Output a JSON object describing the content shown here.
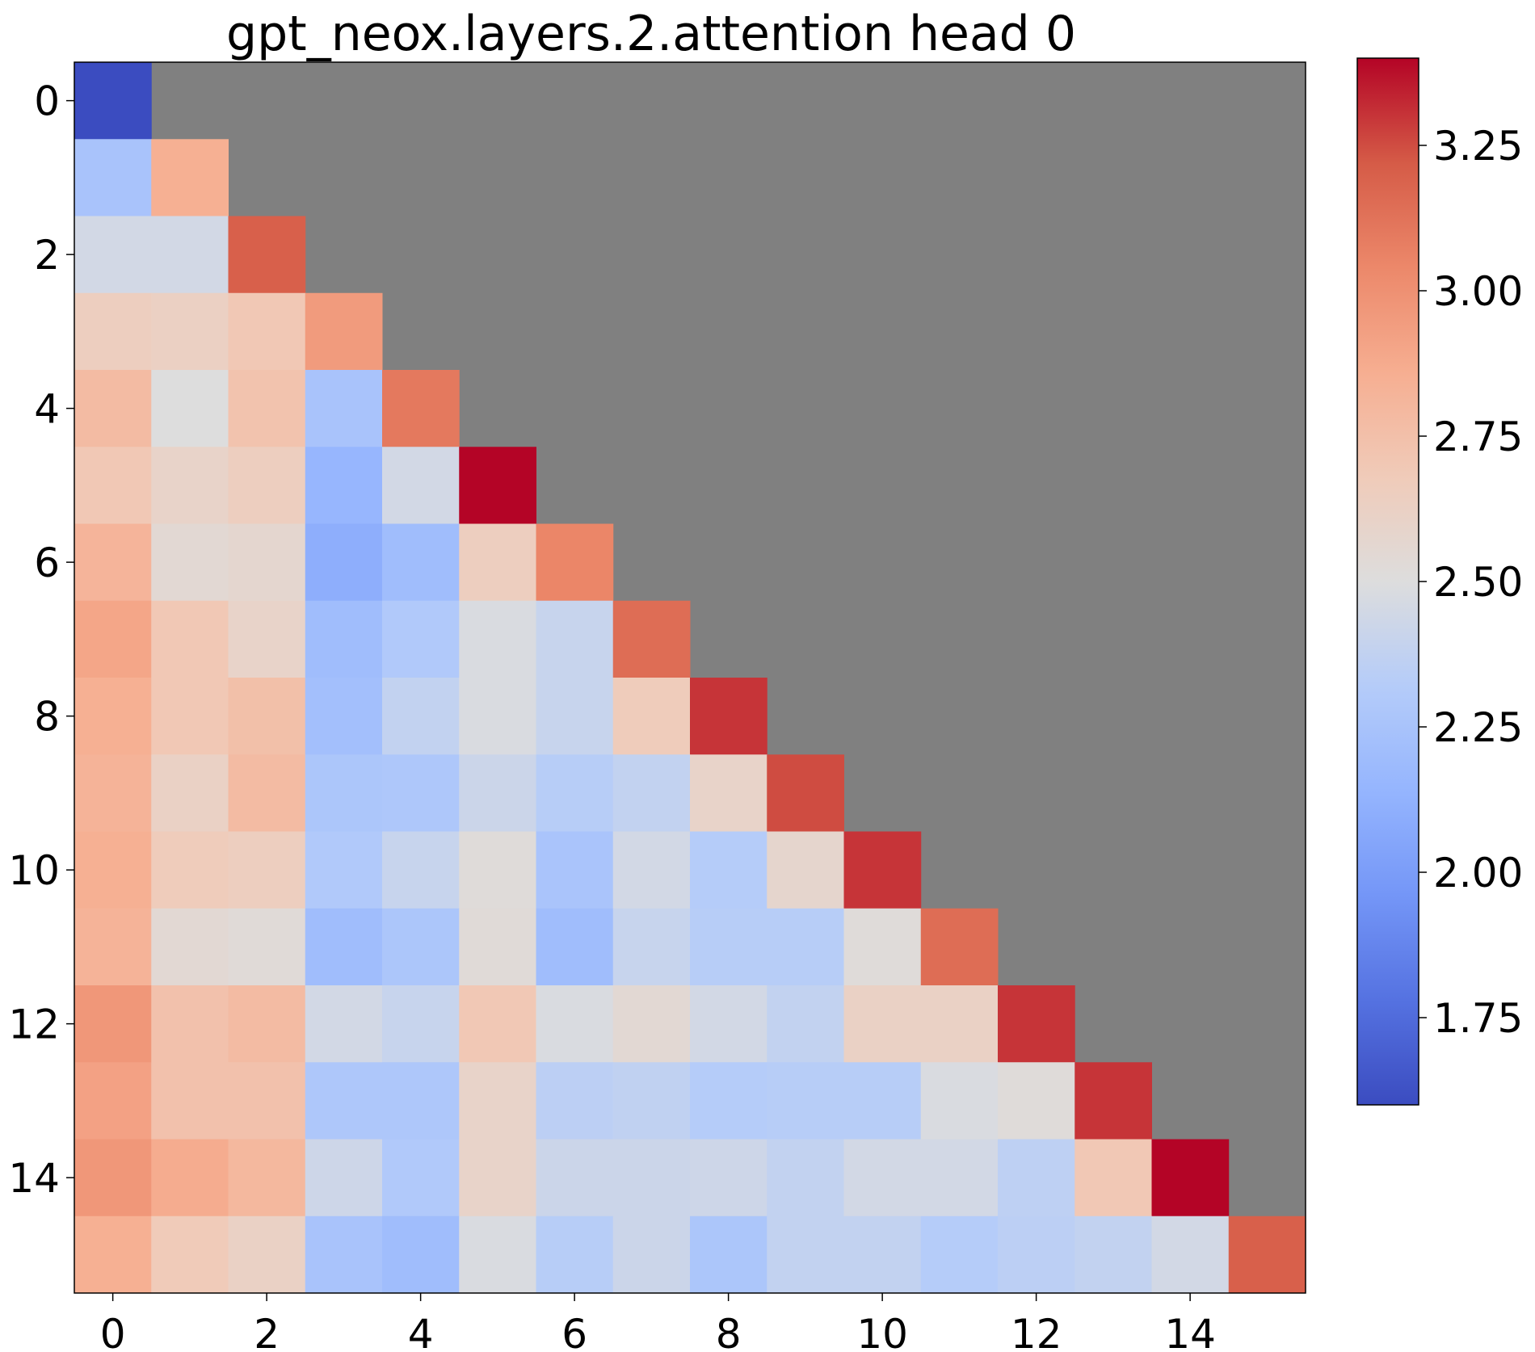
{
  "chart_data": {
    "type": "heatmap",
    "title": "gpt_neox.layers.2.attention head 0",
    "xlabel": "",
    "ylabel": "",
    "x_ticks": [
      0,
      2,
      4,
      6,
      8,
      10,
      12,
      14
    ],
    "y_ticks": [
      0,
      2,
      4,
      6,
      8,
      10,
      12,
      14
    ],
    "colormap": "coolwarm",
    "masked_color": "#808080",
    "color_range": [
      1.6,
      3.4
    ],
    "colorbar_ticks": [
      "1.75",
      "2.00",
      "2.25",
      "2.50",
      "2.75",
      "3.00",
      "3.25"
    ],
    "values": [
      [
        1.6
      ],
      [
        2.25,
        2.85
      ],
      [
        2.45,
        2.45,
        3.2
      ],
      [
        2.65,
        2.63,
        2.7,
        2.95
      ],
      [
        2.78,
        2.5,
        2.73,
        2.25,
        3.1
      ],
      [
        2.7,
        2.6,
        2.65,
        2.15,
        2.45,
        3.4
      ],
      [
        2.82,
        2.55,
        2.57,
        2.1,
        2.2,
        2.65,
        3.05
      ],
      [
        2.9,
        2.7,
        2.6,
        2.2,
        2.3,
        2.48,
        2.4,
        3.15
      ],
      [
        2.85,
        2.7,
        2.75,
        2.22,
        2.38,
        2.48,
        2.4,
        2.67,
        3.3
      ],
      [
        2.83,
        2.62,
        2.78,
        2.27,
        2.28,
        2.42,
        2.33,
        2.38,
        2.6,
        3.25
      ],
      [
        2.85,
        2.67,
        2.65,
        2.3,
        2.4,
        2.52,
        2.26,
        2.45,
        2.32,
        2.58,
        3.3
      ],
      [
        2.83,
        2.55,
        2.53,
        2.2,
        2.27,
        2.53,
        2.2,
        2.4,
        2.33,
        2.33,
        2.52,
        3.15
      ],
      [
        2.97,
        2.74,
        2.78,
        2.45,
        2.4,
        2.7,
        2.48,
        2.55,
        2.45,
        2.38,
        2.62,
        2.62,
        3.3
      ],
      [
        2.92,
        2.74,
        2.74,
        2.28,
        2.28,
        2.6,
        2.35,
        2.37,
        2.32,
        2.33,
        2.33,
        2.48,
        2.52,
        3.3
      ],
      [
        2.97,
        2.87,
        2.8,
        2.43,
        2.3,
        2.6,
        2.42,
        2.42,
        2.43,
        2.38,
        2.45,
        2.45,
        2.36,
        2.7,
        3.4
      ],
      [
        2.85,
        2.68,
        2.62,
        2.25,
        2.2,
        2.48,
        2.33,
        2.42,
        2.27,
        2.38,
        2.38,
        2.32,
        2.35,
        2.38,
        2.45,
        3.2
      ]
    ]
  }
}
